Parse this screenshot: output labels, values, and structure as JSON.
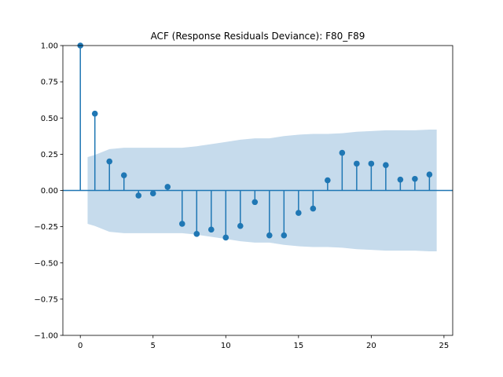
{
  "chart_data": {
    "type": "stem",
    "title": "ACF (Response Residuals Deviance): F80_F89",
    "xlabel": "",
    "ylabel": "",
    "xlim": [
      -1.2,
      25.6
    ],
    "ylim": [
      -1.0,
      1.0
    ],
    "xticks": [
      0,
      5,
      10,
      15,
      20,
      25
    ],
    "yticks": [
      -1.0,
      -0.75,
      -0.5,
      -0.25,
      0.0,
      0.25,
      0.5,
      0.75,
      1.0
    ],
    "ytick_labels": [
      "−1.00",
      "−0.75",
      "−0.50",
      "−0.25",
      "0.00",
      "0.25",
      "0.50",
      "0.75",
      "1.00"
    ],
    "xtick_labels": [
      "0",
      "5",
      "10",
      "15",
      "20",
      "25"
    ],
    "lags": [
      0,
      1,
      2,
      3,
      4,
      5,
      6,
      7,
      8,
      9,
      10,
      11,
      12,
      13,
      14,
      15,
      16,
      17,
      18,
      19,
      20,
      21,
      22,
      23,
      24
    ],
    "acf": [
      1.0,
      0.53,
      0.2,
      0.105,
      -0.035,
      -0.02,
      0.025,
      -0.23,
      -0.3,
      -0.27,
      -0.325,
      -0.245,
      -0.08,
      -0.31,
      -0.31,
      -0.155,
      -0.125,
      0.07,
      0.26,
      0.185,
      0.185,
      0.175,
      0.075,
      0.08,
      0.11
    ],
    "confidence_band": {
      "lags": [
        0.5,
        1,
        2,
        3,
        4,
        5,
        6,
        7,
        8,
        9,
        10,
        11,
        12,
        13,
        14,
        15,
        16,
        17,
        18,
        19,
        20,
        21,
        22,
        23,
        24,
        24.5
      ],
      "upper": [
        0.23,
        0.245,
        0.285,
        0.295,
        0.295,
        0.295,
        0.295,
        0.295,
        0.305,
        0.32,
        0.335,
        0.35,
        0.36,
        0.36,
        0.375,
        0.385,
        0.39,
        0.39,
        0.395,
        0.405,
        0.41,
        0.415,
        0.415,
        0.415,
        0.42,
        0.42
      ]
    },
    "colors": {
      "stem": "#1f77b4",
      "band": "#c6dbec",
      "zero_line": "#1f77b4"
    },
    "grid": false,
    "legend": "none"
  }
}
